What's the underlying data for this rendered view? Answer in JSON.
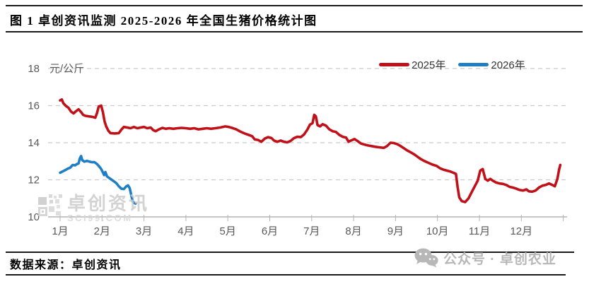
{
  "title": "图 1  卓创资讯监测 2025-2026 年全国生猪价格统计图",
  "chart_data": {
    "type": "line",
    "unit_label": "元/公斤",
    "ylabel": "元/公斤",
    "ylim": [
      10,
      18
    ],
    "yticks": [
      10,
      12,
      14,
      16,
      18
    ],
    "x_categories": [
      "1月",
      "2月",
      "3月",
      "4月",
      "5月",
      "6月",
      "7月",
      "8月",
      "9月",
      "10月",
      "11月",
      "12月"
    ],
    "x_unit": "month (1.0 = Jan 1, 13.0 = Dec 31)",
    "grid": "dashed horizontal gridlines",
    "legend_position": "top-right",
    "colors": {
      "grid": "#cbcbcb",
      "axis": "#b3b3b3",
      "tick_text": "#595959"
    },
    "series": [
      {
        "name": "2025年",
        "color": "#c01118",
        "points": [
          [
            1.0,
            16.28
          ],
          [
            1.04,
            16.33
          ],
          [
            1.08,
            16.12
          ],
          [
            1.14,
            15.98
          ],
          [
            1.2,
            15.88
          ],
          [
            1.26,
            15.68
          ],
          [
            1.32,
            15.58
          ],
          [
            1.38,
            15.7
          ],
          [
            1.44,
            15.8
          ],
          [
            1.5,
            15.65
          ],
          [
            1.55,
            15.5
          ],
          [
            1.6,
            15.45
          ],
          [
            1.68,
            15.42
          ],
          [
            1.76,
            15.4
          ],
          [
            1.84,
            15.35
          ],
          [
            1.88,
            15.6
          ],
          [
            1.92,
            15.95
          ],
          [
            1.98,
            16.0
          ],
          [
            2.02,
            15.65
          ],
          [
            2.06,
            15.15
          ],
          [
            2.1,
            14.88
          ],
          [
            2.15,
            14.65
          ],
          [
            2.2,
            14.52
          ],
          [
            2.3,
            14.5
          ],
          [
            2.4,
            14.52
          ],
          [
            2.46,
            14.7
          ],
          [
            2.52,
            14.85
          ],
          [
            2.6,
            14.82
          ],
          [
            2.68,
            14.78
          ],
          [
            2.76,
            14.85
          ],
          [
            2.84,
            14.78
          ],
          [
            2.92,
            14.82
          ],
          [
            3.0,
            14.85
          ],
          [
            3.08,
            14.78
          ],
          [
            3.16,
            14.82
          ],
          [
            3.22,
            14.68
          ],
          [
            3.28,
            14.62
          ],
          [
            3.36,
            14.72
          ],
          [
            3.44,
            14.8
          ],
          [
            3.52,
            14.75
          ],
          [
            3.6,
            14.78
          ],
          [
            3.7,
            14.75
          ],
          [
            3.8,
            14.78
          ],
          [
            3.9,
            14.8
          ],
          [
            4.0,
            14.78
          ],
          [
            4.1,
            14.75
          ],
          [
            4.2,
            14.78
          ],
          [
            4.3,
            14.72
          ],
          [
            4.4,
            14.75
          ],
          [
            4.5,
            14.78
          ],
          [
            4.6,
            14.75
          ],
          [
            4.7,
            14.78
          ],
          [
            4.82,
            14.82
          ],
          [
            4.94,
            14.88
          ],
          [
            5.02,
            14.85
          ],
          [
            5.1,
            14.8
          ],
          [
            5.2,
            14.72
          ],
          [
            5.3,
            14.6
          ],
          [
            5.4,
            14.5
          ],
          [
            5.5,
            14.42
          ],
          [
            5.58,
            14.35
          ],
          [
            5.64,
            14.18
          ],
          [
            5.72,
            14.15
          ],
          [
            5.8,
            14.05
          ],
          [
            5.88,
            14.22
          ],
          [
            5.96,
            14.3
          ],
          [
            6.04,
            14.25
          ],
          [
            6.1,
            14.12
          ],
          [
            6.18,
            14.05
          ],
          [
            6.26,
            14.12
          ],
          [
            6.34,
            14.05
          ],
          [
            6.42,
            14.02
          ],
          [
            6.5,
            14.1
          ],
          [
            6.58,
            14.25
          ],
          [
            6.66,
            14.32
          ],
          [
            6.74,
            14.3
          ],
          [
            6.82,
            14.45
          ],
          [
            6.9,
            14.72
          ],
          [
            6.96,
            14.98
          ],
          [
            7.02,
            15.05
          ],
          [
            7.06,
            15.5
          ],
          [
            7.1,
            15.42
          ],
          [
            7.14,
            14.95
          ],
          [
            7.2,
            14.88
          ],
          [
            7.26,
            15.0
          ],
          [
            7.34,
            14.92
          ],
          [
            7.42,
            14.72
          ],
          [
            7.5,
            14.62
          ],
          [
            7.58,
            14.58
          ],
          [
            7.66,
            14.42
          ],
          [
            7.74,
            14.32
          ],
          [
            7.82,
            14.28
          ],
          [
            7.88,
            14.05
          ],
          [
            7.94,
            14.12
          ],
          [
            8.02,
            14.2
          ],
          [
            8.1,
            14.08
          ],
          [
            8.18,
            13.95
          ],
          [
            8.26,
            13.9
          ],
          [
            8.34,
            13.85
          ],
          [
            8.42,
            13.82
          ],
          [
            8.52,
            13.78
          ],
          [
            8.62,
            13.75
          ],
          [
            8.72,
            13.72
          ],
          [
            8.8,
            13.82
          ],
          [
            8.88,
            14.0
          ],
          [
            8.96,
            13.98
          ],
          [
            9.04,
            13.92
          ],
          [
            9.12,
            13.82
          ],
          [
            9.2,
            13.7
          ],
          [
            9.28,
            13.58
          ],
          [
            9.36,
            13.48
          ],
          [
            9.44,
            13.38
          ],
          [
            9.52,
            13.25
          ],
          [
            9.6,
            13.12
          ],
          [
            9.68,
            13.02
          ],
          [
            9.78,
            12.92
          ],
          [
            9.88,
            12.82
          ],
          [
            9.98,
            12.75
          ],
          [
            10.06,
            12.62
          ],
          [
            10.14,
            12.55
          ],
          [
            10.22,
            12.5
          ],
          [
            10.3,
            12.45
          ],
          [
            10.38,
            12.38
          ],
          [
            10.44,
            12.32
          ],
          [
            10.48,
            11.6
          ],
          [
            10.52,
            11.05
          ],
          [
            10.58,
            10.85
          ],
          [
            10.66,
            10.8
          ],
          [
            10.74,
            11.0
          ],
          [
            10.82,
            11.35
          ],
          [
            10.9,
            11.7
          ],
          [
            10.96,
            11.95
          ],
          [
            11.02,
            12.5
          ],
          [
            11.08,
            12.58
          ],
          [
            11.14,
            12.05
          ],
          [
            11.2,
            11.95
          ],
          [
            11.26,
            12.05
          ],
          [
            11.32,
            11.95
          ],
          [
            11.4,
            11.85
          ],
          [
            11.48,
            11.8
          ],
          [
            11.56,
            11.78
          ],
          [
            11.64,
            11.72
          ],
          [
            11.72,
            11.62
          ],
          [
            11.8,
            11.58
          ],
          [
            11.88,
            11.52
          ],
          [
            11.96,
            11.45
          ],
          [
            12.04,
            11.42
          ],
          [
            12.12,
            11.48
          ],
          [
            12.18,
            11.38
          ],
          [
            12.26,
            11.36
          ],
          [
            12.34,
            11.42
          ],
          [
            12.42,
            11.58
          ],
          [
            12.5,
            11.68
          ],
          [
            12.58,
            11.72
          ],
          [
            12.66,
            11.8
          ],
          [
            12.74,
            11.72
          ],
          [
            12.8,
            11.65
          ],
          [
            12.86,
            12.05
          ],
          [
            12.9,
            12.55
          ],
          [
            12.93,
            12.8
          ]
        ]
      },
      {
        "name": "2026年",
        "color": "#1f7fc4",
        "points": [
          [
            1.0,
            12.38
          ],
          [
            1.06,
            12.45
          ],
          [
            1.12,
            12.52
          ],
          [
            1.18,
            12.6
          ],
          [
            1.24,
            12.65
          ],
          [
            1.3,
            12.8
          ],
          [
            1.36,
            12.78
          ],
          [
            1.4,
            12.85
          ],
          [
            1.44,
            12.88
          ],
          [
            1.47,
            13.15
          ],
          [
            1.5,
            13.28
          ],
          [
            1.53,
            13.05
          ],
          [
            1.58,
            12.98
          ],
          [
            1.64,
            13.02
          ],
          [
            1.7,
            12.98
          ],
          [
            1.76,
            12.95
          ],
          [
            1.82,
            12.95
          ],
          [
            1.88,
            12.85
          ],
          [
            1.94,
            12.7
          ],
          [
            1.98,
            12.58
          ],
          [
            2.02,
            12.4
          ],
          [
            2.05,
            12.25
          ],
          [
            2.08,
            12.42
          ],
          [
            2.12,
            12.18
          ],
          [
            2.17,
            12.1
          ],
          [
            2.22,
            12.02
          ],
          [
            2.28,
            11.92
          ],
          [
            2.34,
            11.82
          ],
          [
            2.4,
            11.65
          ],
          [
            2.46,
            11.52
          ],
          [
            2.52,
            11.5
          ],
          [
            2.58,
            11.65
          ],
          [
            2.62,
            11.7
          ],
          [
            2.66,
            11.55
          ],
          [
            2.7,
            11.15
          ],
          [
            2.73,
            10.85
          ],
          [
            2.76,
            10.75
          ],
          [
            2.8,
            10.72
          ]
        ]
      }
    ]
  },
  "watermark": {
    "brand": "卓创资讯",
    "site": "SCI99.COM"
  },
  "footer": {
    "source_label": "数据来源：卓创资讯"
  },
  "badge": {
    "wechat_label": "公众号 · 卓创农业"
  },
  "icons": {
    "wechat": "wechat-icon",
    "logo": "qr-logo-icon"
  }
}
